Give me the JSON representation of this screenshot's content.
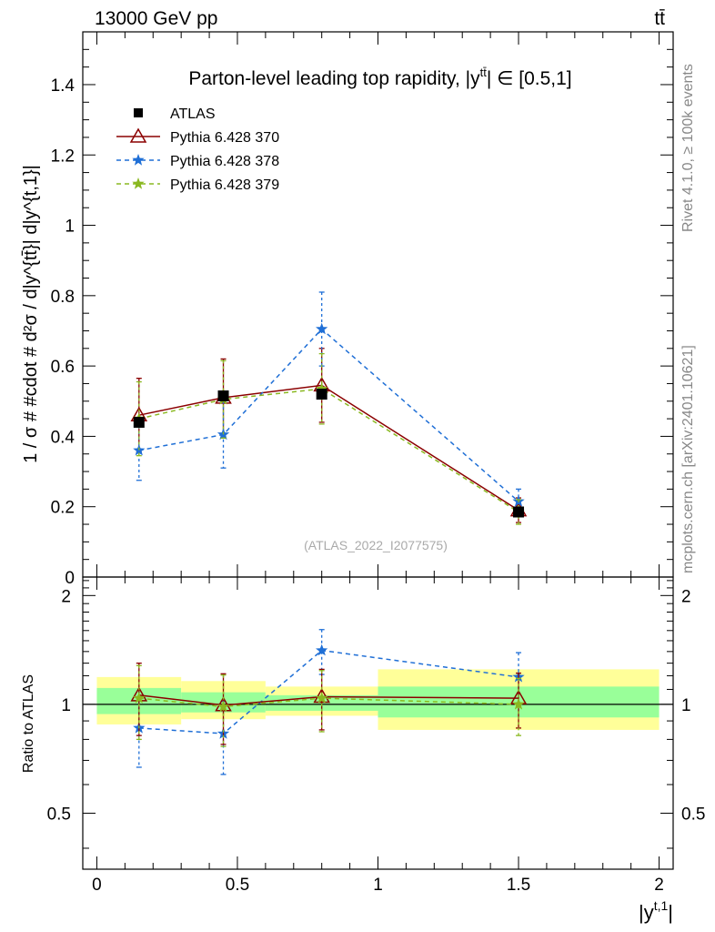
{
  "header": {
    "energy_label": "13000 GeV pp",
    "process_label": "tt̄"
  },
  "side_labels": {
    "rivet": "Rivet 4.1.0, ≥ 100k events",
    "mcplots": "mcplots.cern.ch [arXiv:2401.10621]"
  },
  "chart_data": [
    {
      "panel": "main",
      "type": "scatter",
      "title": "Parton-level leading top rapidity, |y",
      "title_sup": "tt̄",
      "title_tail": "| ∈ [0.5,1]",
      "ylabel": "1 / σ # #cdot # d²σ / d|y^{tt̄}| d|y^{t,1}|",
      "xlim": [
        -0.05,
        2.05
      ],
      "ylim": [
        0,
        1.55
      ],
      "yticks": [
        {
          "v": 0,
          "label": "0"
        },
        {
          "v": 0.2,
          "label": "0.2"
        },
        {
          "v": 0.4,
          "label": "0.4"
        },
        {
          "v": 0.6,
          "label": "0.6"
        },
        {
          "v": 0.8,
          "label": "0.8"
        },
        {
          "v": 1.0,
          "label": "1"
        },
        {
          "v": 1.2,
          "label": "1.2"
        },
        {
          "v": 1.4,
          "label": "1.4"
        }
      ],
      "analysis_tag": "(ATLAS_2022_I2077575)",
      "series": [
        {
          "name": "ATLAS",
          "marker": "square",
          "color": "#000000",
          "dash": "",
          "x": [
            0.15,
            0.45,
            0.8,
            1.5
          ],
          "y": [
            0.44,
            0.515,
            0.52,
            0.185
          ],
          "err": [
            0.0,
            0.0,
            0.0,
            0.0
          ]
        },
        {
          "name": "Pythia 6.428 370",
          "marker": "triangle",
          "color": "#8b0000",
          "dash": "",
          "x": [
            0.15,
            0.45,
            0.8,
            1.5
          ],
          "y": [
            0.46,
            0.51,
            0.545,
            0.19
          ],
          "err": [
            0.105,
            0.11,
            0.105,
            0.035
          ]
        },
        {
          "name": "Pythia 6.428 378",
          "marker": "star",
          "color": "#1f6fd6",
          "dash": "5,4",
          "x": [
            0.15,
            0.45,
            0.8,
            1.5
          ],
          "y": [
            0.36,
            0.405,
            0.705,
            0.215
          ],
          "err": [
            0.085,
            0.095,
            0.105,
            0.035
          ]
        },
        {
          "name": "Pythia 6.428 379",
          "marker": "star",
          "color": "#8ab820",
          "dash": "5,4",
          "x": [
            0.15,
            0.45,
            0.8,
            1.5
          ],
          "y": [
            0.45,
            0.505,
            0.535,
            0.185
          ],
          "err": [
            0.105,
            0.11,
            0.1,
            0.035
          ]
        }
      ]
    },
    {
      "panel": "ratio",
      "type": "scatter",
      "ylabel": "Ratio to ATLAS",
      "xlabel": "|y^{t,1}|",
      "xlim": [
        -0.05,
        2.05
      ],
      "ylim": [
        0.35,
        2.25
      ],
      "yticks": [
        {
          "v": 0.5,
          "label": "0.5"
        },
        {
          "v": 1.0,
          "label": "1"
        },
        {
          "v": 2.0,
          "label": "2"
        }
      ],
      "xticks": [
        {
          "v": 0,
          "label": "0"
        },
        {
          "v": 0.5,
          "label": "0.5"
        },
        {
          "v": 1.0,
          "label": "1"
        },
        {
          "v": 1.5,
          "label": "1.5"
        },
        {
          "v": 2.0,
          "label": "2"
        }
      ],
      "bands": [
        {
          "x0": 0.0,
          "x1": 0.3,
          "yellow": [
            0.88,
            1.19
          ],
          "green": [
            0.94,
            1.11
          ]
        },
        {
          "x0": 0.3,
          "x1": 0.6,
          "yellow": [
            0.91,
            1.16
          ],
          "green": [
            0.95,
            1.08
          ]
        },
        {
          "x0": 0.6,
          "x1": 1.0,
          "yellow": [
            0.93,
            1.12
          ],
          "green": [
            0.96,
            1.06
          ]
        },
        {
          "x0": 1.0,
          "x1": 2.0,
          "yellow": [
            0.85,
            1.25
          ],
          "green": [
            0.92,
            1.12
          ]
        }
      ],
      "series": [
        {
          "name": "Pythia 6.428 370",
          "marker": "triangle",
          "color": "#8b0000",
          "dash": "",
          "x": [
            0.15,
            0.45,
            0.8,
            1.5
          ],
          "y": [
            1.06,
            0.995,
            1.05,
            1.04
          ],
          "err": [
            0.24,
            0.22,
            0.2,
            0.18
          ]
        },
        {
          "name": "Pythia 6.428 378",
          "marker": "star",
          "color": "#1f6fd6",
          "dash": "5,4",
          "x": [
            0.15,
            0.45,
            0.8,
            1.5
          ],
          "y": [
            0.86,
            0.83,
            1.41,
            1.19
          ],
          "err": [
            0.19,
            0.19,
            0.2,
            0.2
          ]
        },
        {
          "name": "Pythia 6.428 379",
          "marker": "star",
          "color": "#8ab820",
          "dash": "5,4",
          "x": [
            0.15,
            0.45,
            0.8,
            1.5
          ],
          "y": [
            1.04,
            0.985,
            1.04,
            1.0
          ],
          "err": [
            0.24,
            0.22,
            0.2,
            0.18
          ]
        }
      ]
    }
  ]
}
